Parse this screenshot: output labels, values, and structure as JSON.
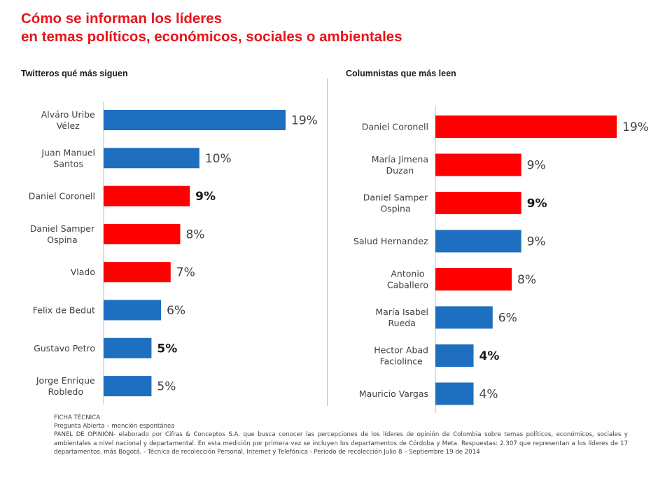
{
  "title_line1": "Cómo se informan los líderes",
  "title_line2": "en temas políticos, económicos, sociales  o ambientales",
  "colors": {
    "red": "#ff0000",
    "blue": "#1f6fc0",
    "title": "#e8141b"
  },
  "chart_data": [
    {
      "type": "bar",
      "orientation": "horizontal",
      "title": "Twitteros qué más siguen",
      "categories": [
        [
          "Alváro Uribe",
          "Vélez"
        ],
        [
          "Juan Manuel",
          "Santos"
        ],
        [
          "Daniel Coronell"
        ],
        [
          "Daniel Samper",
          "Ospina"
        ],
        [
          "Vlado"
        ],
        [
          "Felix de Bedut"
        ],
        [
          "Gustavo Petro"
        ],
        [
          "Jorge Enrique",
          "Robledo"
        ]
      ],
      "values": [
        19,
        10,
        9,
        8,
        7,
        6,
        5,
        5
      ],
      "value_labels": [
        "19%",
        "10%",
        "9%",
        "8%",
        "7%",
        "6%",
        "5%",
        "5%"
      ],
      "bar_colors": [
        "blue",
        "blue",
        "red",
        "red",
        "red",
        "blue",
        "blue",
        "blue"
      ],
      "bold_labels": [
        false,
        false,
        true,
        false,
        false,
        false,
        true,
        false
      ],
      "xlim": [
        0,
        19
      ],
      "grid": false
    },
    {
      "type": "bar",
      "orientation": "horizontal",
      "title": "Columnistas que más leen",
      "categories": [
        [
          "Daniel Coronell"
        ],
        [
          "María Jimena",
          "Duzan"
        ],
        [
          "Daniel Samper",
          "Ospina"
        ],
        [
          "Salud Hernandez"
        ],
        [
          "Antonio",
          "Caballero"
        ],
        [
          "María Isabel",
          "Rueda"
        ],
        [
          "Hector Abad",
          "Faciolince"
        ],
        [
          "Mauricio Vargas"
        ]
      ],
      "values": [
        19,
        9,
        9,
        9,
        8,
        6,
        4,
        4
      ],
      "value_labels": [
        "19%",
        "9%",
        "9%",
        "9%",
        "8%",
        "6%",
        "4%",
        "4%"
      ],
      "bar_colors": [
        "red",
        "red",
        "red",
        "blue",
        "red",
        "blue",
        "blue",
        "blue"
      ],
      "bold_labels": [
        false,
        false,
        true,
        false,
        false,
        false,
        true,
        false
      ],
      "xlim": [
        0,
        19
      ],
      "grid": false
    }
  ],
  "footer": {
    "line1": "FICHA TÉCNICA",
    "line2": "Pregunta Abierta – mención espontánea",
    "body": "PANEL DE OPINIÓN- elaborado por Cifras & Conceptos S.A. que busca conocer las percepciones de los líderes de opinión de Colombia sobre temas políticos, económicos, sociales y ambientales a nivel nacional y departamental.  En esta medición por primera vez se incluyen los departamentos de Córdoba y Meta. Respuestas: 2.307 que representan a los líderes de 17 departamentos, más Bogotá.  - Técnica de recolección Personal, Internet y Telefónica  - Periodo de recolección Julio 8 – Septiembre 19 de 2014"
  }
}
